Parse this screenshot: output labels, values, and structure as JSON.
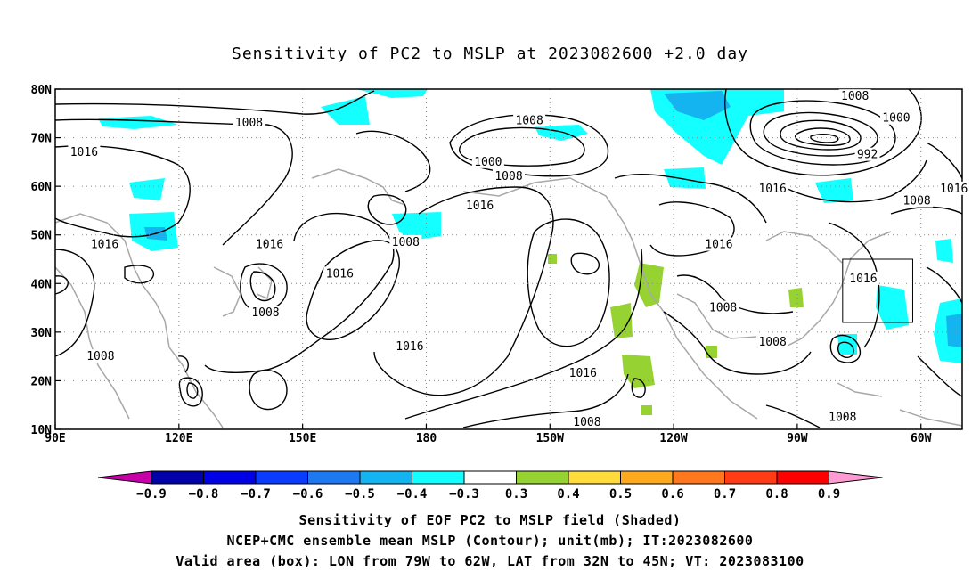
{
  "title": "Sensitivity of PC2 to MSLP at 2023082600 +2.0 day",
  "map": {
    "lon_min": 90,
    "lon_max": 310,
    "lat_min": 10,
    "lat_max": 80,
    "lon_ticks": [
      {
        "lon": 90,
        "label": "90E"
      },
      {
        "lon": 120,
        "label": "120E"
      },
      {
        "lon": 150,
        "label": "150E"
      },
      {
        "lon": 180,
        "label": "180"
      },
      {
        "lon": 210,
        "label": "150W"
      },
      {
        "lon": 240,
        "label": "120W"
      },
      {
        "lon": 270,
        "label": "90W"
      },
      {
        "lon": 300,
        "label": "60W"
      }
    ],
    "lat_ticks": [
      {
        "lat": 10,
        "label": "10N"
      },
      {
        "lat": 20,
        "label": "20N"
      },
      {
        "lat": 30,
        "label": "30N"
      },
      {
        "lat": 40,
        "label": "40N"
      },
      {
        "lat": 50,
        "label": "50N"
      },
      {
        "lat": 60,
        "label": "60N"
      },
      {
        "lat": 70,
        "label": "70N"
      },
      {
        "lat": 80,
        "label": "80N"
      }
    ],
    "valid_box": {
      "lon_w": 281,
      "lon_e": 298,
      "lat_s": 32,
      "lat_n": 45
    },
    "contour_labels": [
      {
        "text": "1008",
        "lon": 137,
        "lat": 73
      },
      {
        "text": "1016",
        "lon": 97,
        "lat": 67
      },
      {
        "text": "1016",
        "lon": 102,
        "lat": 48
      },
      {
        "text": "1016",
        "lon": 142,
        "lat": 48
      },
      {
        "text": "1008",
        "lon": 141,
        "lat": 34
      },
      {
        "text": "1008",
        "lon": 101,
        "lat": 25
      },
      {
        "text": "1016",
        "lon": 159,
        "lat": 42
      },
      {
        "text": "1008",
        "lon": 175,
        "lat": 48.5
      },
      {
        "text": "1008",
        "lon": 205,
        "lat": 73.5
      },
      {
        "text": "1000",
        "lon": 195,
        "lat": 65
      },
      {
        "text": "1008",
        "lon": 200,
        "lat": 62
      },
      {
        "text": "1016",
        "lon": 193,
        "lat": 56
      },
      {
        "text": "1016",
        "lon": 176,
        "lat": 27
      },
      {
        "text": "1016",
        "lon": 218,
        "lat": 21.5
      },
      {
        "text": "1008",
        "lon": 219,
        "lat": 11.5
      },
      {
        "text": "1016",
        "lon": 251,
        "lat": 48
      },
      {
        "text": "1008",
        "lon": 252,
        "lat": 35
      },
      {
        "text": "1008",
        "lon": 264,
        "lat": 28
      },
      {
        "text": "1016",
        "lon": 286,
        "lat": 41
      },
      {
        "text": "1016",
        "lon": 264,
        "lat": 59.5
      },
      {
        "text": "1008",
        "lon": 284,
        "lat": 78.5
      },
      {
        "text": "1000",
        "lon": 294,
        "lat": 74
      },
      {
        "text": "992",
        "lon": 287,
        "lat": 66.5
      },
      {
        "text": "1008",
        "lon": 299,
        "lat": 57
      },
      {
        "text": "1016",
        "lon": 308,
        "lat": 59.5
      },
      {
        "text": "1008",
        "lon": 281,
        "lat": 12.5
      }
    ]
  },
  "colorbar": {
    "labels": [
      "-0.9",
      "-0.8",
      "-0.7",
      "-0.6",
      "-0.5",
      "-0.4",
      "-0.3",
      "0.3",
      "0.4",
      "0.5",
      "0.6",
      "0.7",
      "0.8",
      "0.9"
    ],
    "colors": [
      "#0000a8",
      "#0000e6",
      "#0a3cff",
      "#1e78f0",
      "#14b4f0",
      "#14ffff",
      "#ffffff",
      "#96d232",
      "#ffdc3c",
      "#ffaa1e",
      "#ff781e",
      "#ff3c14",
      "#ff0000"
    ],
    "left_arrow_color": "#c800aa",
    "right_arrow_color": "#ff9bd2"
  },
  "footer": {
    "line1": "Sensitivity of EOF PC2 to MSLP field (Shaded)",
    "line2": "NCEP+CMC ensemble mean MSLP (Contour); unit(mb); IT:2023082600",
    "line3": "Valid area (box): LON from 79W to 62W, LAT from 32N to 45N; VT: 2023083100"
  }
}
